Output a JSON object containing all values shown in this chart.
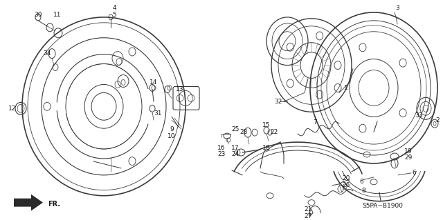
{
  "background_color": "#ffffff",
  "diagram_code": "S5PA−B1900",
  "figsize": [
    6.4,
    3.19
  ],
  "dpi": 100,
  "line_color": "#3a3a3a",
  "text_color": "#1a1a1a",
  "label_fontsize": 6.5
}
